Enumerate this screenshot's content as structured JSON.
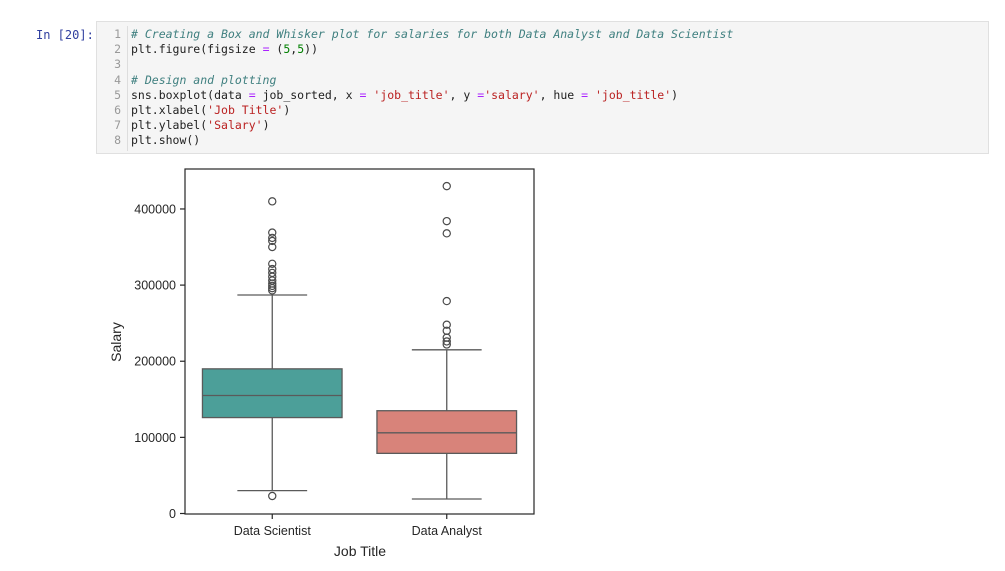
{
  "cell": {
    "prompt": "In [20]:",
    "code_lines": [
      {
        "n": "1",
        "text": "# Creating a Box and Whisker plot for salaries for both Data Analyst and Data Scientist",
        "kind": "comment"
      },
      {
        "n": "2",
        "text": "plt.figure(figsize = (5,5))",
        "kind": "code"
      },
      {
        "n": "3",
        "text": "",
        "kind": "code"
      },
      {
        "n": "4",
        "text": "# Design and plotting",
        "kind": "comment"
      },
      {
        "n": "5",
        "text": "sns.boxplot(data = job_sorted, x = 'job_title', y ='salary', hue = 'job_title')",
        "kind": "code"
      },
      {
        "n": "6",
        "text": "plt.xlabel('Job Title')",
        "kind": "code"
      },
      {
        "n": "7",
        "text": "plt.ylabel('Salary')",
        "kind": "code"
      },
      {
        "n": "8",
        "text": "plt.show()",
        "kind": "code"
      }
    ]
  },
  "chart_data": {
    "type": "box",
    "categories": [
      "Data Scientist",
      "Data Analyst"
    ],
    "xlabel": "Job Title",
    "ylabel": "Salary",
    "ylim": [
      0,
      445000
    ],
    "yticks": [
      0,
      100000,
      200000,
      300000,
      400000
    ],
    "ytick_labels": [
      "0",
      "100000",
      "200000",
      "300000",
      "400000"
    ],
    "grid": false,
    "legend": "none",
    "boxes": [
      {
        "category": "Data Scientist",
        "color": "#4c9f99",
        "whisker_low": 30000,
        "q1": 126000,
        "median": 155000,
        "q3": 190000,
        "whisker_high": 287000,
        "outliers": [
          23000,
          293000,
          296000,
          299000,
          302000,
          306000,
          311000,
          316000,
          321000,
          328000,
          350000,
          358000,
          362000,
          369000,
          410000
        ]
      },
      {
        "category": "Data Analyst",
        "color": "#d8837a",
        "whisker_low": 19000,
        "q1": 79000,
        "median": 106000,
        "q3": 135000,
        "whisker_high": 215000,
        "outliers": [
          222000,
          226000,
          231000,
          240000,
          248000,
          279000,
          368000,
          384000,
          430000
        ]
      }
    ]
  }
}
